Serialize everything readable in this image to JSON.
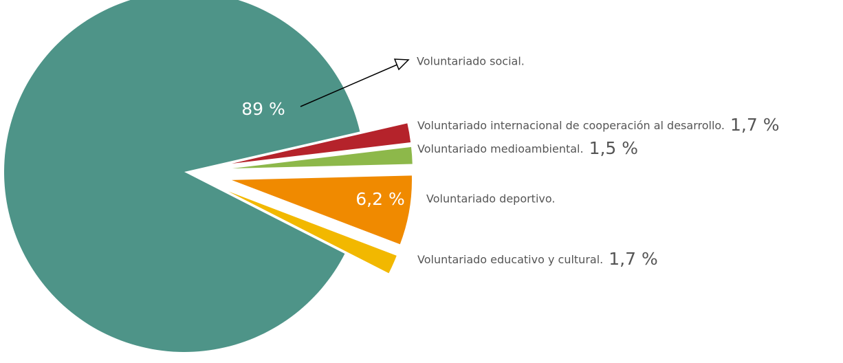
{
  "chart_data": {
    "type": "pie",
    "categories": [
      "Voluntariado social.",
      "Voluntariado internacional de cooperación al desarrollo.",
      "Voluntariado medioambiental.",
      "Voluntariado deportivo.",
      "Voluntariado educativo y cultural."
    ],
    "values": [
      89,
      1.7,
      1.5,
      6.2,
      1.7
    ],
    "value_labels": [
      "89 %",
      "1,7 %",
      "1,5 %",
      "6,2 %",
      "1,7 %"
    ],
    "colors": [
      "#4e9488",
      "#b5232b",
      "#8db84a",
      "#f08a00",
      "#f2b800"
    ]
  }
}
